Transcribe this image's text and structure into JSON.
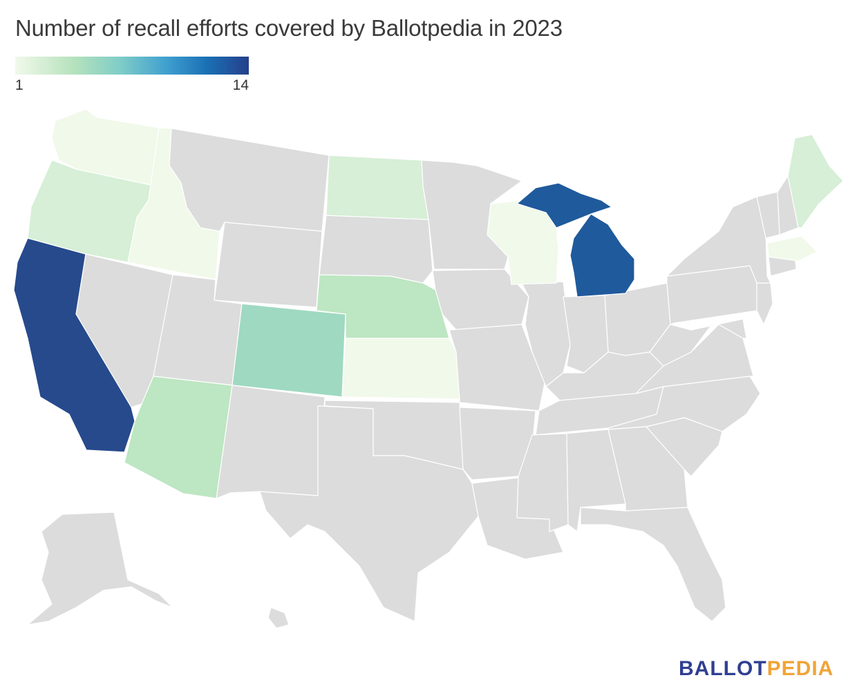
{
  "title": "Number of recall efforts covered by Ballotpedia in 2023",
  "legend": {
    "min": "1",
    "max": "14"
  },
  "colors": {
    "no_data": "#dcdcdc",
    "very_low": "#f1f9ea",
    "low": "#d6efd6",
    "low_mid": "#bde6c2",
    "mid": "#9fd9c1",
    "high": "#1f5a9c",
    "highest": "#264a8c"
  },
  "map_data": {
    "shaded_states": [
      {
        "state": "California",
        "level": "highest"
      },
      {
        "state": "Michigan",
        "level": "high"
      },
      {
        "state": "Colorado",
        "level": "mid"
      },
      {
        "state": "Arizona",
        "level": "low_mid"
      },
      {
        "state": "Nebraska",
        "level": "low_mid"
      },
      {
        "state": "Oregon",
        "level": "low"
      },
      {
        "state": "North Dakota",
        "level": "low"
      },
      {
        "state": "Maine",
        "level": "low"
      },
      {
        "state": "Washington",
        "level": "very_low"
      },
      {
        "state": "Idaho",
        "level": "very_low"
      },
      {
        "state": "Kansas",
        "level": "very_low"
      },
      {
        "state": "Wisconsin",
        "level": "very_low"
      },
      {
        "state": "Massachusetts",
        "level": "very_low"
      }
    ]
  },
  "logo": {
    "part1": "BALLOT",
    "part2": "PEDIA"
  }
}
